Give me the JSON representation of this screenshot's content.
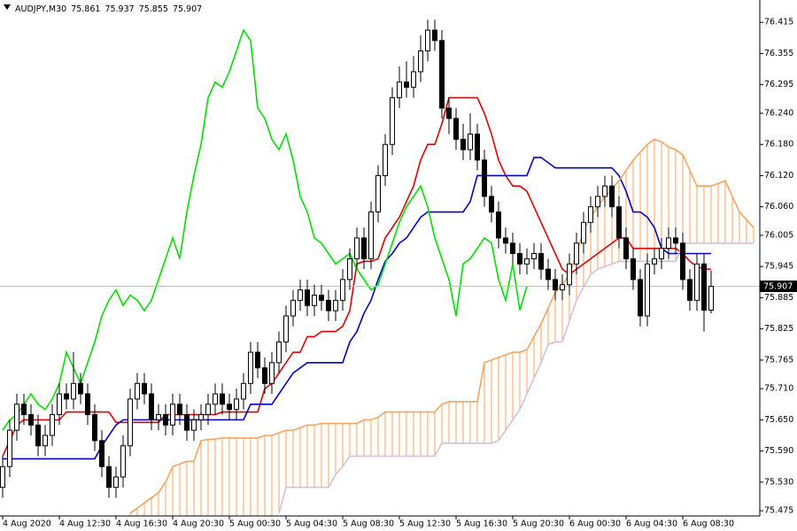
{
  "chart_data": {
    "type": "candlestick",
    "symbol": "AUDJPY,M30",
    "categories": [
      "4 Aug 2020",
      null,
      null,
      null,
      null,
      null,
      null,
      null,
      "4 Aug 12:30",
      null,
      null,
      null,
      null,
      null,
      null,
      null,
      "4 Aug 16:30",
      null,
      null,
      null,
      null,
      null,
      null,
      null,
      "4 Aug 20:30",
      null,
      null,
      null,
      null,
      null,
      null,
      null,
      "5 Aug 00:30",
      null,
      null,
      null,
      null,
      null,
      null,
      null,
      "5 Aug 04:30",
      null,
      null,
      null,
      null,
      null,
      null,
      null,
      "5 Aug 08:30",
      null,
      null,
      null,
      null,
      null,
      null,
      null,
      "5 Aug 12:30",
      null,
      null,
      null,
      null,
      null,
      null,
      null,
      "5 Aug 16:30",
      null,
      null,
      null,
      null,
      null,
      null,
      null,
      "5 Aug 20:30",
      null,
      null,
      null,
      null,
      null,
      null,
      null,
      "6 Aug 00:30",
      null,
      null,
      null,
      null,
      null,
      null,
      null,
      "6 Aug 04:30",
      null,
      null,
      null,
      null,
      null,
      null,
      null,
      "6 Aug 08:30",
      null,
      null,
      null,
      null,
      null,
      null,
      null,
      null,
      null,
      null
    ],
    "open": [
      75.52,
      75.56,
      75.63,
      75.68,
      75.66,
      75.64,
      75.6,
      75.62,
      75.66,
      75.7,
      75.69,
      75.72,
      75.7,
      75.66,
      75.61,
      75.56,
      75.52,
      75.54,
      75.6,
      75.69,
      75.72,
      75.7,
      75.65,
      75.66,
      75.64,
      75.68,
      75.66,
      75.63,
      75.65,
      75.66,
      75.68,
      75.7,
      75.68,
      75.67,
      75.69,
      75.72,
      75.78,
      75.75,
      75.72,
      75.76,
      75.8,
      75.85,
      75.88,
      75.9,
      75.87,
      75.89,
      75.88,
      75.86,
      75.88,
      75.92,
      75.96,
      76,
      75.96,
      76.05,
      76.12,
      76.18,
      76.27,
      76.3,
      76.29,
      76.32,
      76.36,
      76.4,
      76.38,
      76.25,
      76.23,
      76.19,
      76.17,
      76.2,
      76.15,
      76.08,
      76.05,
      76,
      75.99,
      75.97,
      75.95,
      75.96,
      75.97,
      75.94,
      75.92,
      75.9,
      75.91,
      75.95,
      75.99,
      76.03,
      76.06,
      76.08,
      76.1,
      76.06,
      76,
      75.96,
      75.92,
      75.85,
      75.95,
      75.96,
      75.98,
      76,
      75.99,
      75.92,
      75.88,
      75.95,
      75.861,
      null,
      null,
      null,
      null,
      null,
      null
    ],
    "high": [
      75.58,
      75.65,
      75.7,
      75.7,
      75.68,
      75.66,
      75.64,
      75.68,
      75.72,
      75.72,
      75.78,
      75.74,
      75.72,
      75.68,
      75.63,
      75.58,
      75.56,
      75.62,
      75.71,
      75.74,
      75.74,
      75.72,
      75.68,
      75.68,
      75.7,
      75.7,
      75.68,
      75.67,
      75.68,
      75.7,
      75.72,
      75.72,
      75.7,
      75.71,
      75.74,
      75.8,
      75.8,
      75.77,
      75.78,
      75.82,
      75.87,
      75.9,
      75.92,
      75.92,
      75.91,
      75.91,
      75.9,
      75.9,
      75.94,
      75.98,
      76.02,
      76.02,
      76.07,
      76.14,
      76.2,
      76.29,
      76.33,
      76.34,
      76.35,
      76.39,
      76.42,
      76.42,
      76.4,
      76.27,
      76.25,
      76.22,
      76.24,
      76.22,
      76.17,
      76.1,
      76.07,
      76.02,
      76.01,
      75.99,
      75.98,
      75.99,
      75.99,
      75.96,
      75.94,
      75.93,
      75.97,
      76.01,
      76.05,
      76.08,
      76.1,
      76.12,
      76.12,
      76.08,
      76.02,
      75.98,
      75.94,
      75.97,
      75.98,
      76,
      76.02,
      76.02,
      76.01,
      75.94,
      75.97,
      75.97,
      75.937,
      null,
      null,
      null,
      null,
      null,
      null
    ],
    "low": [
      75.5,
      75.54,
      75.61,
      75.64,
      75.62,
      75.58,
      75.58,
      75.6,
      75.64,
      75.67,
      75.67,
      75.68,
      75.64,
      75.59,
      75.54,
      75.5,
      75.5,
      75.52,
      75.58,
      75.67,
      75.68,
      75.63,
      75.63,
      75.62,
      75.62,
      75.64,
      75.61,
      75.61,
      75.63,
      75.64,
      75.66,
      75.66,
      75.65,
      75.65,
      75.67,
      75.7,
      75.73,
      75.7,
      75.7,
      75.74,
      75.78,
      75.83,
      75.86,
      75.85,
      75.85,
      75.86,
      75.84,
      75.84,
      75.86,
      75.9,
      75.94,
      75.94,
      75.94,
      76.03,
      76.1,
      76.16,
      76.25,
      76.27,
      76.27,
      76.3,
      76.34,
      76.36,
      76.23,
      76.2,
      76.17,
      76.15,
      76.15,
      76.13,
      76.06,
      76.03,
      75.98,
      75.97,
      75.95,
      75.93,
      75.93,
      75.94,
      75.92,
      75.9,
      75.88,
      75.88,
      75.89,
      75.93,
      75.97,
      76.01,
      76.04,
      76.06,
      76.04,
      75.98,
      75.94,
      75.9,
      75.83,
      75.83,
      75.93,
      75.94,
      75.96,
      75.97,
      75.9,
      75.86,
      75.86,
      75.82,
      75.855,
      null,
      null,
      null,
      null,
      null,
      null
    ],
    "close": [
      75.56,
      75.63,
      75.68,
      75.66,
      75.64,
      75.6,
      75.62,
      75.66,
      75.7,
      75.69,
      75.72,
      75.7,
      75.66,
      75.61,
      75.56,
      75.52,
      75.54,
      75.6,
      75.69,
      75.72,
      75.7,
      75.65,
      75.66,
      75.64,
      75.68,
      75.66,
      75.63,
      75.65,
      75.66,
      75.68,
      75.7,
      75.68,
      75.67,
      75.69,
      75.72,
      75.78,
      75.75,
      75.72,
      75.76,
      75.8,
      75.85,
      75.88,
      75.9,
      75.87,
      75.89,
      75.88,
      75.86,
      75.88,
      75.92,
      75.96,
      76,
      75.96,
      76.05,
      76.12,
      76.18,
      76.27,
      76.3,
      76.29,
      76.32,
      76.36,
      76.4,
      76.38,
      76.25,
      76.23,
      76.19,
      76.17,
      76.2,
      76.15,
      76.08,
      76.05,
      76,
      75.99,
      75.97,
      75.95,
      75.96,
      75.97,
      75.94,
      75.92,
      75.9,
      75.91,
      75.95,
      75.99,
      76.03,
      76.06,
      76.08,
      76.1,
      76.06,
      76,
      75.96,
      75.92,
      75.85,
      75.95,
      75.96,
      75.98,
      76,
      75.99,
      75.92,
      75.88,
      75.95,
      75.861,
      75.907,
      null,
      null,
      null,
      null,
      null,
      null
    ],
    "series": [
      {
        "color": "#e00000",
        "values": [
          75.58,
          75.61,
          75.64,
          75.65,
          75.65,
          75.65,
          75.65,
          75.65,
          75.65,
          75.665,
          75.665,
          75.665,
          75.665,
          75.665,
          75.665,
          75.665,
          75.645,
          75.645,
          75.645,
          75.645,
          75.645,
          75.645,
          75.645,
          75.66,
          75.66,
          75.66,
          75.66,
          75.66,
          75.66,
          75.66,
          75.66,
          75.665,
          75.665,
          75.665,
          75.665,
          75.665,
          75.665,
          75.71,
          75.72,
          75.74,
          75.76,
          75.78,
          75.78,
          75.81,
          75.81,
          75.82,
          75.82,
          75.82,
          75.83,
          75.86,
          75.95,
          75.955,
          75.955,
          75.96,
          76,
          76.02,
          76.04,
          76.07,
          76.1,
          76.15,
          76.18,
          76.18,
          76.22,
          76.27,
          76.27,
          76.27,
          76.27,
          76.27,
          76.24,
          76.2,
          76.15,
          76.12,
          76.1,
          76.1,
          76.09,
          76.06,
          76.03,
          76,
          75.97,
          75.94,
          75.93,
          75.94,
          75.95,
          75.96,
          75.97,
          75.98,
          75.99,
          76,
          76,
          75.98,
          75.98,
          75.98,
          75.98,
          75.98,
          75.98,
          75.98,
          75.97,
          75.955,
          75.945,
          75.94,
          75.94,
          null,
          null,
          null,
          null,
          null,
          null
        ]
      },
      {
        "color": "#0000c8",
        "values": [
          75.575,
          75.575,
          75.575,
          75.575,
          75.575,
          75.575,
          75.575,
          75.575,
          75.575,
          75.575,
          75.575,
          75.575,
          75.575,
          75.575,
          75.6,
          75.62,
          75.64,
          75.65,
          75.65,
          75.65,
          75.65,
          75.65,
          75.65,
          75.65,
          75.65,
          75.65,
          75.65,
          75.65,
          75.65,
          75.65,
          75.65,
          75.65,
          75.65,
          75.65,
          75.65,
          75.68,
          75.68,
          75.68,
          75.68,
          75.7,
          75.72,
          75.74,
          75.75,
          75.76,
          75.76,
          75.76,
          75.76,
          75.76,
          75.76,
          75.8,
          75.82,
          75.855,
          75.88,
          75.92,
          75.955,
          75.97,
          75.99,
          76,
          76.02,
          76.04,
          76.05,
          76.05,
          76.05,
          76.05,
          76.05,
          76.05,
          76.07,
          76.12,
          76.12,
          76.12,
          76.12,
          76.12,
          76.12,
          76.12,
          76.12,
          76.155,
          76.155,
          76.145,
          76.135,
          76.135,
          76.135,
          76.135,
          76.135,
          76.135,
          76.135,
          76.135,
          76.135,
          76.12,
          76.09,
          76.05,
          76.05,
          76.04,
          76.02,
          75.98,
          75.97,
          75.97,
          75.97,
          75.97,
          75.97,
          75.97,
          75.97,
          null,
          null,
          null,
          null,
          null,
          null
        ]
      },
      {
        "color": "#00e000",
        "values": [
          75.63,
          75.65,
          75.66,
          75.68,
          75.7,
          75.68,
          75.67,
          75.69,
          75.72,
          75.78,
          75.75,
          75.72,
          75.76,
          75.8,
          75.85,
          75.88,
          75.9,
          75.87,
          75.89,
          75.88,
          75.86,
          75.88,
          75.92,
          75.96,
          76,
          75.96,
          76.05,
          76.12,
          76.18,
          76.27,
          76.3,
          76.29,
          76.32,
          76.36,
          76.4,
          76.38,
          76.25,
          76.23,
          76.19,
          76.17,
          76.2,
          76.15,
          76.08,
          76.05,
          76,
          75.99,
          75.97,
          75.95,
          75.96,
          75.97,
          75.94,
          75.92,
          75.9,
          75.91,
          75.95,
          75.99,
          76.03,
          76.06,
          76.08,
          76.1,
          76.06,
          76,
          75.96,
          75.92,
          75.85,
          75.95,
          75.96,
          75.98,
          76,
          75.99,
          75.92,
          75.88,
          75.95,
          75.861,
          75.907,
          null,
          null,
          null,
          null,
          null,
          null,
          null,
          null,
          null,
          null,
          null,
          null,
          null,
          null,
          null,
          null,
          null,
          null,
          null,
          null,
          null,
          null,
          null,
          null,
          null,
          null,
          null,
          null,
          null,
          null,
          null,
          null
        ]
      },
      {
        "color": "#f4a460",
        "values": [
          null,
          null,
          null,
          null,
          null,
          null,
          null,
          null,
          null,
          null,
          null,
          null,
          null,
          null,
          null,
          null,
          null,
          null,
          75.47,
          75.48,
          75.49,
          75.5,
          75.51,
          75.53,
          75.56,
          75.565,
          75.57,
          75.57,
          75.61,
          75.612,
          75.613,
          75.615,
          75.615,
          75.615,
          75.615,
          75.615,
          75.615,
          75.62,
          75.62,
          75.625,
          75.63,
          75.63,
          75.635,
          75.64,
          75.64,
          75.643,
          75.643,
          75.643,
          75.643,
          75.643,
          75.643,
          75.65,
          75.65,
          75.655,
          75.665,
          75.665,
          75.665,
          75.665,
          75.665,
          75.665,
          75.665,
          75.665,
          75.68,
          75.685,
          75.685,
          75.685,
          75.685,
          75.685,
          75.76,
          75.765,
          75.77,
          75.775,
          75.78,
          75.78,
          75.785,
          75.81,
          75.835,
          75.865,
          75.895,
          75.91,
          75.93,
          75.97,
          76.015,
          76.04,
          76.06,
          76.08,
          76.095,
          76.11,
          76.13,
          76.15,
          76.165,
          76.18,
          76.19,
          76.185,
          76.175,
          76.17,
          76.16,
          76.13,
          76.1,
          76.1,
          76.1,
          76.105,
          76.11,
          76.08,
          76.05,
          76.035,
          76.02
        ]
      },
      {
        "color": "#d8bfd8",
        "values": [
          null,
          null,
          null,
          null,
          null,
          null,
          null,
          null,
          null,
          null,
          null,
          null,
          null,
          null,
          null,
          null,
          null,
          null,
          null,
          null,
          null,
          null,
          null,
          null,
          null,
          null,
          null,
          null,
          null,
          null,
          null,
          null,
          null,
          null,
          null,
          null,
          null,
          null,
          null,
          75.47,
          75.52,
          75.52,
          75.52,
          75.52,
          75.52,
          75.52,
          75.52,
          75.545,
          75.56,
          75.58,
          75.58,
          75.58,
          75.58,
          75.58,
          75.58,
          75.58,
          75.58,
          75.58,
          75.58,
          75.58,
          75.58,
          75.58,
          75.605,
          75.605,
          75.605,
          75.605,
          75.605,
          75.605,
          75.605,
          75.605,
          75.61,
          75.63,
          75.65,
          75.67,
          75.7,
          75.73,
          75.76,
          75.795,
          75.8,
          75.8,
          75.84,
          75.88,
          75.905,
          75.93,
          75.94,
          75.945,
          75.95,
          75.955,
          75.955,
          75.955,
          75.955,
          75.955,
          75.955,
          75.955,
          75.955,
          75.955,
          75.99,
          75.99,
          75.99,
          75.99,
          75.99,
          75.99,
          75.99,
          75.99,
          75.99,
          75.99,
          75.99
        ]
      }
    ],
    "cloud": true,
    "ylim": [
      75.465,
      76.458
    ],
    "yticks": [
      76.415,
      76.355,
      76.295,
      {
        "value": 76.24,
        "label": "76.240"
      },
      {
        "value": 76.18,
        "label": "76.180"
      },
      {
        "value": 76.12,
        "label": "76.120"
      },
      {
        "value": 76.06,
        "label": "76.060"
      },
      76.005,
      75.945,
      75.885,
      75.825,
      75.765,
      {
        "value": 75.71,
        "label": "75.710"
      },
      {
        "value": 75.65,
        "label": "75.650"
      },
      {
        "value": 75.59,
        "label": "75.590"
      },
      {
        "value": 75.53,
        "label": "75.530"
      },
      75.475
    ]
  }
}
